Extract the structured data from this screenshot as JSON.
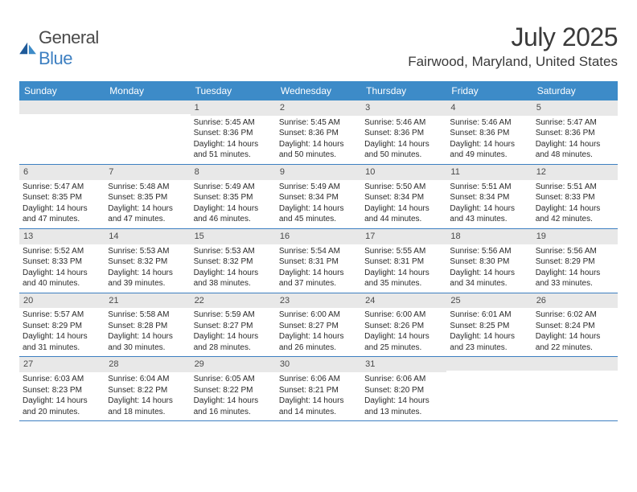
{
  "logo": {
    "word1": "General",
    "word2": "Blue"
  },
  "title": "July 2025",
  "location": "Fairwood, Maryland, United States",
  "colors": {
    "header_bg": "#3d8bc8",
    "header_text": "#ffffff",
    "daynum_bg": "#e8e8e8",
    "rule": "#3d7fc1",
    "text": "#2a2a2a"
  },
  "weekdays": [
    "Sunday",
    "Monday",
    "Tuesday",
    "Wednesday",
    "Thursday",
    "Friday",
    "Saturday"
  ],
  "cells": [
    {
      "n": "",
      "sr": "",
      "ss": "",
      "dl": ""
    },
    {
      "n": "",
      "sr": "",
      "ss": "",
      "dl": ""
    },
    {
      "n": "1",
      "sr": "5:45 AM",
      "ss": "8:36 PM",
      "dl": "14 hours and 51 minutes."
    },
    {
      "n": "2",
      "sr": "5:45 AM",
      "ss": "8:36 PM",
      "dl": "14 hours and 50 minutes."
    },
    {
      "n": "3",
      "sr": "5:46 AM",
      "ss": "8:36 PM",
      "dl": "14 hours and 50 minutes."
    },
    {
      "n": "4",
      "sr": "5:46 AM",
      "ss": "8:36 PM",
      "dl": "14 hours and 49 minutes."
    },
    {
      "n": "5",
      "sr": "5:47 AM",
      "ss": "8:36 PM",
      "dl": "14 hours and 48 minutes."
    },
    {
      "n": "6",
      "sr": "5:47 AM",
      "ss": "8:35 PM",
      "dl": "14 hours and 47 minutes."
    },
    {
      "n": "7",
      "sr": "5:48 AM",
      "ss": "8:35 PM",
      "dl": "14 hours and 47 minutes."
    },
    {
      "n": "8",
      "sr": "5:49 AM",
      "ss": "8:35 PM",
      "dl": "14 hours and 46 minutes."
    },
    {
      "n": "9",
      "sr": "5:49 AM",
      "ss": "8:34 PM",
      "dl": "14 hours and 45 minutes."
    },
    {
      "n": "10",
      "sr": "5:50 AM",
      "ss": "8:34 PM",
      "dl": "14 hours and 44 minutes."
    },
    {
      "n": "11",
      "sr": "5:51 AM",
      "ss": "8:34 PM",
      "dl": "14 hours and 43 minutes."
    },
    {
      "n": "12",
      "sr": "5:51 AM",
      "ss": "8:33 PM",
      "dl": "14 hours and 42 minutes."
    },
    {
      "n": "13",
      "sr": "5:52 AM",
      "ss": "8:33 PM",
      "dl": "14 hours and 40 minutes."
    },
    {
      "n": "14",
      "sr": "5:53 AM",
      "ss": "8:32 PM",
      "dl": "14 hours and 39 minutes."
    },
    {
      "n": "15",
      "sr": "5:53 AM",
      "ss": "8:32 PM",
      "dl": "14 hours and 38 minutes."
    },
    {
      "n": "16",
      "sr": "5:54 AM",
      "ss": "8:31 PM",
      "dl": "14 hours and 37 minutes."
    },
    {
      "n": "17",
      "sr": "5:55 AM",
      "ss": "8:31 PM",
      "dl": "14 hours and 35 minutes."
    },
    {
      "n": "18",
      "sr": "5:56 AM",
      "ss": "8:30 PM",
      "dl": "14 hours and 34 minutes."
    },
    {
      "n": "19",
      "sr": "5:56 AM",
      "ss": "8:29 PM",
      "dl": "14 hours and 33 minutes."
    },
    {
      "n": "20",
      "sr": "5:57 AM",
      "ss": "8:29 PM",
      "dl": "14 hours and 31 minutes."
    },
    {
      "n": "21",
      "sr": "5:58 AM",
      "ss": "8:28 PM",
      "dl": "14 hours and 30 minutes."
    },
    {
      "n": "22",
      "sr": "5:59 AM",
      "ss": "8:27 PM",
      "dl": "14 hours and 28 minutes."
    },
    {
      "n": "23",
      "sr": "6:00 AM",
      "ss": "8:27 PM",
      "dl": "14 hours and 26 minutes."
    },
    {
      "n": "24",
      "sr": "6:00 AM",
      "ss": "8:26 PM",
      "dl": "14 hours and 25 minutes."
    },
    {
      "n": "25",
      "sr": "6:01 AM",
      "ss": "8:25 PM",
      "dl": "14 hours and 23 minutes."
    },
    {
      "n": "26",
      "sr": "6:02 AM",
      "ss": "8:24 PM",
      "dl": "14 hours and 22 minutes."
    },
    {
      "n": "27",
      "sr": "6:03 AM",
      "ss": "8:23 PM",
      "dl": "14 hours and 20 minutes."
    },
    {
      "n": "28",
      "sr": "6:04 AM",
      "ss": "8:22 PM",
      "dl": "14 hours and 18 minutes."
    },
    {
      "n": "29",
      "sr": "6:05 AM",
      "ss": "8:22 PM",
      "dl": "14 hours and 16 minutes."
    },
    {
      "n": "30",
      "sr": "6:06 AM",
      "ss": "8:21 PM",
      "dl": "14 hours and 14 minutes."
    },
    {
      "n": "31",
      "sr": "6:06 AM",
      "ss": "8:20 PM",
      "dl": "14 hours and 13 minutes."
    },
    {
      "n": "",
      "sr": "",
      "ss": "",
      "dl": ""
    },
    {
      "n": "",
      "sr": "",
      "ss": "",
      "dl": ""
    }
  ],
  "labels": {
    "sunrise": "Sunrise:",
    "sunset": "Sunset:",
    "daylight": "Daylight:"
  }
}
